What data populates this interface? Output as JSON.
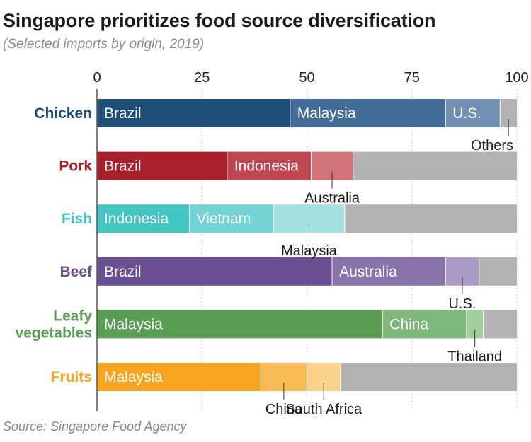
{
  "chart_data": {
    "type": "stacked-bar-horizontal",
    "title": "Singapore prioritizes food source diversification",
    "subtitle": "(Selected imports by origin, 2019)",
    "source": "Source: Singapore Food Agency",
    "unit": "percent",
    "xlim": [
      0,
      100
    ],
    "ticks": [
      0,
      25,
      50,
      75,
      100
    ],
    "grid": "dotted vertical",
    "colors": {
      "Chicken": "#1f4e79",
      "Pork": "#a8202b",
      "Fish": "#45c4c4",
      "Beef": "#6a4f92",
      "Leafy vegetables": "#5a9e55",
      "Fruits": "#f7a521",
      "others": "#b3b3b3",
      "gridline": "#c8c8c8",
      "axis": "#555555"
    },
    "categories": [
      {
        "name": "Chicken",
        "label_lines": [
          "Chicken"
        ],
        "segments": [
          {
            "origin": "Brazil",
            "value": 46,
            "shade": "#1f4e79",
            "label": "inside"
          },
          {
            "origin": "Malaysia",
            "value": 37,
            "shade": "#436d98",
            "label": "inside"
          },
          {
            "origin": "U.S.",
            "value": 13,
            "shade": "#7190b2",
            "label": "inside"
          },
          {
            "origin": "Others",
            "value": 4,
            "shade": "#b3b3b3",
            "label": "callout"
          }
        ]
      },
      {
        "name": "Pork",
        "label_lines": [
          "Pork"
        ],
        "segments": [
          {
            "origin": "Brazil",
            "value": 31,
            "shade": "#a8202b",
            "label": "inside"
          },
          {
            "origin": "Indonesia",
            "value": 20,
            "shade": "#c0464f",
            "label": "inside"
          },
          {
            "origin": "Australia",
            "value": 10,
            "shade": "#d27378",
            "label": "callout"
          },
          {
            "origin": "Others",
            "value": 39,
            "shade": "#b3b3b3",
            "label": "none"
          }
        ]
      },
      {
        "name": "Fish",
        "label_lines": [
          "Fish"
        ],
        "segments": [
          {
            "origin": "Indonesia",
            "value": 22,
            "shade": "#45c4c4",
            "label": "inside"
          },
          {
            "origin": "Vietnam",
            "value": 20,
            "shade": "#74d3d3",
            "label": "inside"
          },
          {
            "origin": "Malaysia",
            "value": 17,
            "shade": "#a3e1e0",
            "label": "callout"
          },
          {
            "origin": "Others",
            "value": 41,
            "shade": "#b3b3b3",
            "label": "none"
          }
        ]
      },
      {
        "name": "Beef",
        "label_lines": [
          "Beef"
        ],
        "segments": [
          {
            "origin": "Brazil",
            "value": 56,
            "shade": "#6a4f92",
            "label": "inside"
          },
          {
            "origin": "Australia",
            "value": 27,
            "shade": "#8874ab",
            "label": "inside"
          },
          {
            "origin": "U.S.",
            "value": 8,
            "shade": "#a99bc6",
            "label": "callout"
          },
          {
            "origin": "Others",
            "value": 9,
            "shade": "#b3b3b3",
            "label": "none"
          }
        ]
      },
      {
        "name": "Leafy vegetables",
        "label_lines": [
          "Leafy",
          "vegetables"
        ],
        "segments": [
          {
            "origin": "Malaysia",
            "value": 68,
            "shade": "#5a9e55",
            "label": "inside"
          },
          {
            "origin": "China",
            "value": 20,
            "shade": "#7db779",
            "label": "inside"
          },
          {
            "origin": "Thailand",
            "value": 4,
            "shade": "#a2cd9c",
            "label": "callout"
          },
          {
            "origin": "Others",
            "value": 8,
            "shade": "#b3b3b3",
            "label": "none"
          }
        ]
      },
      {
        "name": "Fruits",
        "label_lines": [
          "Fruits"
        ],
        "segments": [
          {
            "origin": "Malaysia",
            "value": 39,
            "shade": "#f7a521",
            "label": "inside"
          },
          {
            "origin": "China",
            "value": 11,
            "shade": "#f9bc55",
            "label": "callout"
          },
          {
            "origin": "South Africa",
            "value": 8,
            "shade": "#fbd289",
            "label": "callout"
          },
          {
            "origin": "Others",
            "value": 42,
            "shade": "#b3b3b3",
            "label": "none"
          }
        ]
      }
    ]
  }
}
